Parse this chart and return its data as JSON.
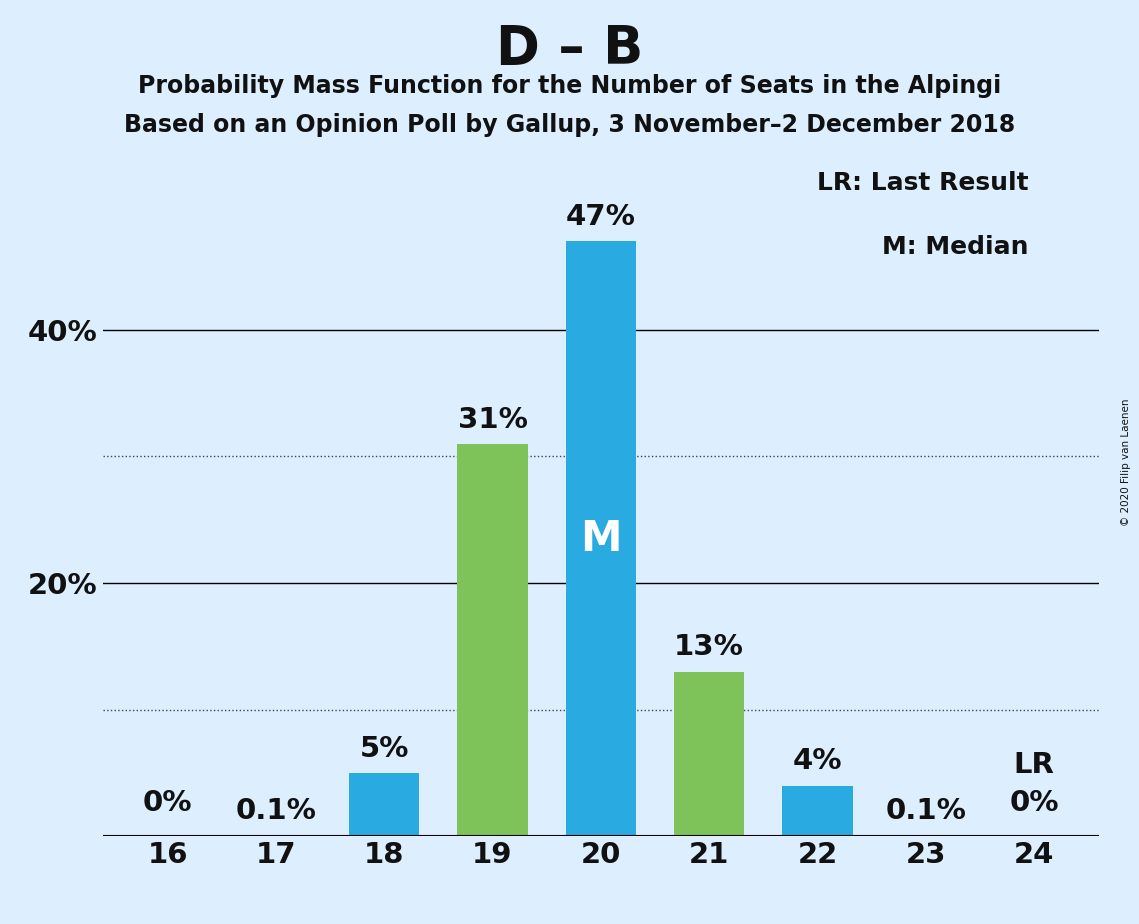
{
  "title": "D – B",
  "subtitle1": "Probability Mass Function for the Number of Seats in the Alpingi",
  "subtitle2": "Based on an Opinion Poll by Gallup, 3 November–2 December 2018",
  "copyright": "© 2020 Filip van Laenen",
  "categories": [
    16,
    17,
    18,
    19,
    20,
    21,
    22,
    23,
    24
  ],
  "values": [
    0,
    0.1,
    5,
    31,
    47,
    13,
    4,
    0.1,
    0
  ],
  "colors": [
    "#29ABE2",
    "#29ABE2",
    "#29ABE2",
    "#7DC35A",
    "#29ABE2",
    "#7DC35A",
    "#29ABE2",
    "#29ABE2",
    "#29ABE2"
  ],
  "labels": [
    "0%",
    "0.1%",
    "5%",
    "31%",
    "47%",
    "13%",
    "4%",
    "0.1%",
    "0%"
  ],
  "median_bar": 4,
  "median_label": "M",
  "lr_bar": 8,
  "lr_label": "LR",
  "legend_lr": "LR: Last Result",
  "legend_m": "M: Median",
  "background_color": "#DDEEFF",
  "bar_width": 0.65,
  "solid_gridlines": [
    20,
    40
  ],
  "dotted_gridlines": [
    10,
    30
  ],
  "ylim": [
    0,
    54
  ],
  "title_fontsize": 38,
  "subtitle_fontsize": 17,
  "bar_label_fontsize": 21,
  "tick_fontsize": 21,
  "median_label_fontsize": 30,
  "legend_fontsize": 18
}
